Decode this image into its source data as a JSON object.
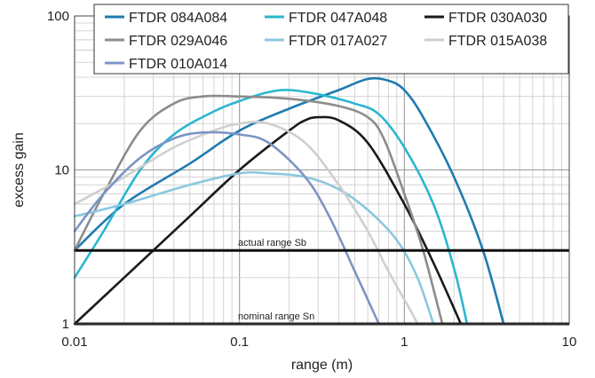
{
  "chart_data": {
    "type": "line",
    "xlabel": "range (m)",
    "ylabel": "excess gain",
    "x_scale": "log",
    "y_scale": "log",
    "xlim": [
      0.01,
      10
    ],
    "ylim": [
      1,
      100
    ],
    "x_ticks": [
      "0.01",
      "0.1",
      "1",
      "10"
    ],
    "y_ticks": [
      "1",
      "10",
      "100"
    ],
    "grid": true,
    "legend_position": "top",
    "series": [
      {
        "name": "FTDR 084A084",
        "color": "#1f7bb0",
        "points": [
          [
            0.01,
            3
          ],
          [
            0.02,
            6
          ],
          [
            0.05,
            11
          ],
          [
            0.1,
            18
          ],
          [
            0.2,
            25
          ],
          [
            0.4,
            33
          ],
          [
            0.6,
            39
          ],
          [
            0.8,
            38
          ],
          [
            1.0,
            33
          ],
          [
            1.3,
            22
          ],
          [
            2.0,
            9
          ],
          [
            3.0,
            3
          ],
          [
            4.0,
            1
          ]
        ]
      },
      {
        "name": "FTDR 047A048",
        "color": "#2ab6d0",
        "points": [
          [
            0.01,
            2
          ],
          [
            0.015,
            4
          ],
          [
            0.025,
            10
          ],
          [
            0.04,
            17
          ],
          [
            0.07,
            24
          ],
          [
            0.1,
            28
          ],
          [
            0.15,
            32
          ],
          [
            0.2,
            33
          ],
          [
            0.3,
            31
          ],
          [
            0.5,
            27
          ],
          [
            0.7,
            23
          ],
          [
            1.0,
            14
          ],
          [
            1.5,
            6
          ],
          [
            2.0,
            2.3
          ],
          [
            2.4,
            1
          ]
        ]
      },
      {
        "name": "FTDR 030A030",
        "color": "#1a1a1a",
        "points": [
          [
            0.01,
            1
          ],
          [
            0.02,
            2
          ],
          [
            0.05,
            5
          ],
          [
            0.1,
            10
          ],
          [
            0.2,
            18
          ],
          [
            0.25,
            21
          ],
          [
            0.3,
            22
          ],
          [
            0.4,
            21
          ],
          [
            0.6,
            15
          ],
          [
            1.0,
            6
          ],
          [
            1.5,
            2.5
          ],
          [
            2.2,
            1
          ]
        ]
      },
      {
        "name": "FTDR 029A046",
        "color": "#8c8c8c",
        "points": [
          [
            0.01,
            3
          ],
          [
            0.015,
            7
          ],
          [
            0.025,
            18
          ],
          [
            0.04,
            27
          ],
          [
            0.06,
            30
          ],
          [
            0.1,
            30
          ],
          [
            0.2,
            29
          ],
          [
            0.4,
            26
          ],
          [
            0.6,
            22
          ],
          [
            0.75,
            16
          ],
          [
            1.0,
            7
          ],
          [
            1.3,
            3
          ],
          [
            1.7,
            1
          ]
        ]
      },
      {
        "name": "FTDR 017A027",
        "color": "#8cc7df",
        "points": [
          [
            0.01,
            5
          ],
          [
            0.02,
            6
          ],
          [
            0.05,
            8
          ],
          [
            0.1,
            9.5
          ],
          [
            0.15,
            9.5
          ],
          [
            0.25,
            9
          ],
          [
            0.4,
            7.5
          ],
          [
            0.6,
            5.5
          ],
          [
            0.9,
            3.5
          ],
          [
            1.2,
            2
          ],
          [
            1.5,
            1
          ]
        ]
      },
      {
        "name": "FTDR 015A038",
        "color": "#cfcfcf",
        "points": [
          [
            0.01,
            6
          ],
          [
            0.02,
            9
          ],
          [
            0.04,
            14
          ],
          [
            0.07,
            18
          ],
          [
            0.1,
            20
          ],
          [
            0.15,
            20
          ],
          [
            0.25,
            15
          ],
          [
            0.4,
            8
          ],
          [
            0.6,
            4
          ],
          [
            0.8,
            2.2
          ],
          [
            1.1,
            1.2
          ],
          [
            1.2,
            1
          ]
        ]
      },
      {
        "name": "FTDR 010A014",
        "color": "#7b95c4",
        "points": [
          [
            0.01,
            4
          ],
          [
            0.015,
            7
          ],
          [
            0.025,
            12
          ],
          [
            0.04,
            16
          ],
          [
            0.06,
            17.5
          ],
          [
            0.1,
            17
          ],
          [
            0.15,
            15
          ],
          [
            0.25,
            9
          ],
          [
            0.35,
            5
          ],
          [
            0.5,
            2.2
          ],
          [
            0.7,
            1
          ]
        ]
      }
    ],
    "reference_lines": [
      {
        "label": "actual range Sb",
        "y": 3
      },
      {
        "label": "nominal range Sn",
        "y": 1
      }
    ]
  }
}
